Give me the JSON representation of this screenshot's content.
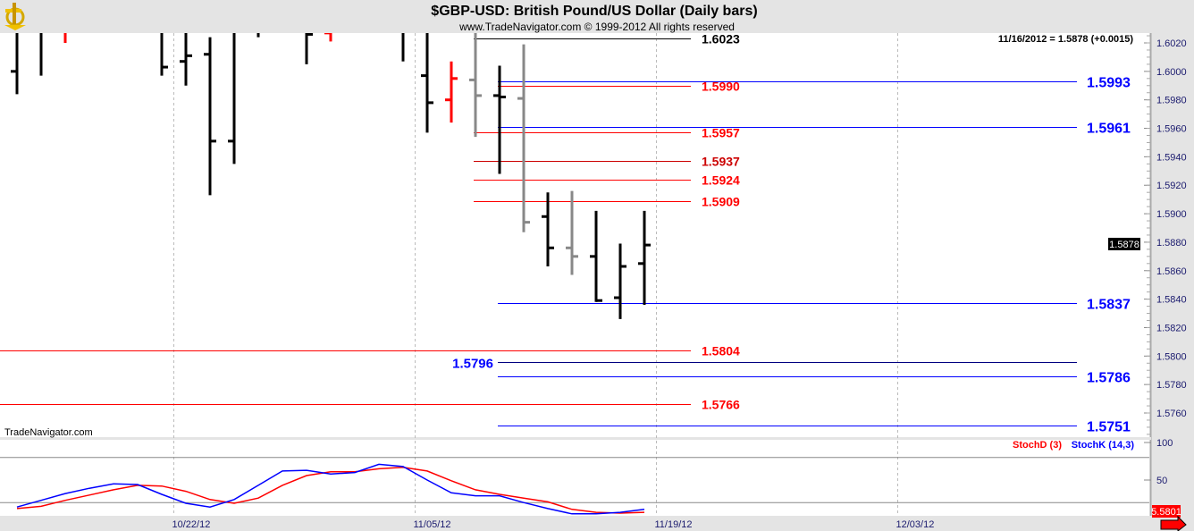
{
  "header": {
    "title": "$GBP-USD:  British Pound/US Dollar  (Daily bars)",
    "subtitle": "www.TradeNavigator.com © 1999-2012 All rights reserved",
    "logo": "trade-navigator-sextant-logo"
  },
  "readout": "11/16/2012 = 1.5878 (+0.0015)",
  "watermark": "TradeNavigator.com",
  "colors": {
    "up_bar": "#000000",
    "red_bar": "#ff0000",
    "gray_bar": "#888888",
    "red_level": "#ff0000",
    "blue_level": "#0000ff",
    "axis_text": "#1a1a6e",
    "stoch_k": "#0000ff",
    "stoch_d": "#ff0000",
    "panel": "#e4e4e4"
  },
  "chart_data": [
    {
      "type": "ohlc",
      "title": "$GBP-USD:  British Pound/US Dollar  (Daily bars)",
      "ylim": [
        1.574,
        1.6027
      ],
      "y_ticks": [
        "1.6020",
        "1.6000",
        "1.5980",
        "1.5960",
        "1.5940",
        "1.5920",
        "1.5900",
        "1.5880",
        "1.5860",
        "1.5840",
        "1.5820",
        "1.5800",
        "1.5780",
        "1.5760"
      ],
      "x_ticks": [
        "10/22/12",
        "11/05/12",
        "11/19/12",
        "12/03/12"
      ],
      "last_price_label": "1.5878",
      "bars": [
        {
          "date": "10/11/12",
          "o": 1.6,
          "h": 1.604,
          "l": 1.5984,
          "c": 1.6035,
          "color": "black"
        },
        {
          "date": "10/12/12",
          "o": 1.6035,
          "h": 1.6045,
          "l": 1.5997,
          "c": 1.603,
          "color": "black"
        },
        {
          "date": "10/15/12",
          "o": 1.6035,
          "h": 1.604,
          "l": 1.602,
          "c": 1.603,
          "color": "red"
        },
        {
          "date": "10/16/12",
          "o": null,
          "h": null,
          "l": null,
          "c": null,
          "color": "black"
        },
        {
          "date": "10/17/12",
          "o": null,
          "h": null,
          "l": null,
          "c": null,
          "color": "black"
        },
        {
          "date": "10/18/12",
          "o": null,
          "h": null,
          "l": null,
          "c": null,
          "color": "black"
        },
        {
          "date": "10/19/12",
          "o": 1.6035,
          "h": 1.6045,
          "l": 1.5997,
          "c": 1.6003,
          "color": "black"
        },
        {
          "date": "10/22/12",
          "o": 1.6007,
          "h": 1.6035,
          "l": 1.599,
          "c": 1.6011,
          "color": "black"
        },
        {
          "date": "10/23/12",
          "o": 1.6012,
          "h": 1.6024,
          "l": 1.5913,
          "c": 1.5951,
          "color": "black"
        },
        {
          "date": "10/24/12",
          "o": 1.5951,
          "h": 1.6035,
          "l": 1.5935,
          "c": 1.603,
          "color": "black"
        },
        {
          "date": "10/25/12",
          "o": 1.6035,
          "h": 1.604,
          "l": 1.6024,
          "c": 1.603,
          "color": "black"
        },
        {
          "date": "10/26/12",
          "o": null,
          "h": null,
          "l": null,
          "c": null,
          "color": "black"
        },
        {
          "date": "10/29/12",
          "o": 1.6035,
          "h": 1.604,
          "l": 1.6005,
          "c": 1.6026,
          "color": "black"
        },
        {
          "date": "10/30/12",
          "o": 1.6027,
          "h": 1.6035,
          "l": 1.6021,
          "c": 1.603,
          "color": "red"
        },
        {
          "date": "10/31/12",
          "o": null,
          "h": null,
          "l": null,
          "c": null,
          "color": "black"
        },
        {
          "date": "11/01/12",
          "o": null,
          "h": null,
          "l": null,
          "c": null,
          "color": "black"
        },
        {
          "date": "11/02/12",
          "o": 1.6035,
          "h": 1.604,
          "l": 1.6007,
          "c": 1.603,
          "color": "black"
        },
        {
          "date": "11/05/12",
          "o": 1.5997,
          "h": 1.604,
          "l": 1.5957,
          "c": 1.5978,
          "color": "black"
        },
        {
          "date": "11/06/12",
          "o": 1.598,
          "h": 1.6007,
          "l": 1.5964,
          "c": 1.5995,
          "color": "red"
        },
        {
          "date": "11/07/12",
          "o": 1.5994,
          "h": 1.603,
          "l": 1.5954,
          "c": 1.5983,
          "color": "gray"
        },
        {
          "date": "11/08/12",
          "o": 1.5983,
          "h": 1.6004,
          "l": 1.5928,
          "c": 1.5982,
          "color": "black"
        },
        {
          "date": "11/09/12",
          "o": 1.5981,
          "h": 1.6019,
          "l": 1.5887,
          "c": 1.5894,
          "color": "gray"
        },
        {
          "date": "11/12/12",
          "o": 1.5898,
          "h": 1.5915,
          "l": 1.5863,
          "c": 1.5876,
          "color": "black"
        },
        {
          "date": "11/13/12",
          "o": 1.5876,
          "h": 1.5916,
          "l": 1.5857,
          "c": 1.587,
          "color": "gray"
        },
        {
          "date": "11/14/12",
          "o": 1.587,
          "h": 1.5902,
          "l": 1.5838,
          "c": 1.5839,
          "color": "black"
        },
        {
          "date": "11/15/12",
          "o": 1.5841,
          "h": 1.5879,
          "l": 1.5826,
          "c": 1.5863,
          "color": "black"
        },
        {
          "date": "11/16/12",
          "o": 1.5865,
          "h": 1.5902,
          "l": 1.5836,
          "c": 1.5878,
          "color": "black"
        }
      ],
      "levels": [
        {
          "value": 1.6023,
          "label": "1.6023",
          "color": "#000000",
          "from": "11/07/12",
          "to": "11/20/12",
          "label_side": "right"
        },
        {
          "value": 1.599,
          "label": "1.5990",
          "color": "#ff0000",
          "from": "11/08/12",
          "to": "11/20/12",
          "label_side": "right"
        },
        {
          "value": 1.5957,
          "label": "1.5957",
          "color": "#ff0000",
          "from": "11/07/12",
          "to": "11/20/12",
          "label_side": "right"
        },
        {
          "value": 1.5937,
          "label": "1.5937",
          "color": "#cc0000",
          "from": "11/07/12",
          "to": "11/20/12",
          "label_side": "right"
        },
        {
          "value": 1.5924,
          "label": "1.5924",
          "color": "#ff0000",
          "from": "11/07/12",
          "to": "11/20/12",
          "label_side": "right"
        },
        {
          "value": 1.5909,
          "label": "1.5909",
          "color": "#ff0000",
          "from": "11/07/12",
          "to": "11/20/12",
          "label_side": "right"
        },
        {
          "value": 1.5804,
          "label": "1.5804",
          "color": "#ff0000",
          "from": null,
          "to": "11/20/12",
          "label_side": "right"
        },
        {
          "value": 1.5766,
          "label": "1.5766",
          "color": "#ff0000",
          "from": null,
          "to": "11/20/12",
          "label_side": "right"
        },
        {
          "value": 1.5993,
          "label": "1.5993",
          "color": "#0000ff",
          "from": "11/08/12",
          "to": "12/12/12",
          "label_side": "right"
        },
        {
          "value": 1.5961,
          "label": "1.5961",
          "color": "#0000ff",
          "from": "11/08/12",
          "to": "12/12/12",
          "label_side": "right"
        },
        {
          "value": 1.5837,
          "label": "1.5837",
          "color": "#0000ff",
          "from": "11/08/12",
          "to": "12/12/12",
          "label_side": "right"
        },
        {
          "value": 1.5796,
          "label": "1.5796",
          "color": "#000080",
          "from": "11/08/12",
          "to": "12/12/12",
          "label_side": "left"
        },
        {
          "value": 1.5786,
          "label": "1.5786",
          "color": "#0000ff",
          "from": "11/08/12",
          "to": "12/12/12",
          "label_side": "right"
        },
        {
          "value": 1.5751,
          "label": "1.5751",
          "color": "#0000ff",
          "from": "11/08/12",
          "to": "12/12/12",
          "label_side": "right"
        }
      ]
    },
    {
      "type": "line",
      "ylim": [
        0,
        100
      ],
      "y_ticks": [
        "100",
        "50"
      ],
      "reference_lines": [
        80,
        20
      ],
      "last_value_label": "5.5801",
      "series": [
        {
          "name": "StochD (3)",
          "color": "#ff0000",
          "values": [
            12,
            15,
            23,
            30,
            37,
            43,
            42,
            35,
            24,
            19,
            26,
            43,
            56,
            61,
            61,
            65,
            67,
            62,
            49,
            37,
            31,
            26,
            21,
            11,
            7,
            6,
            7
          ]
        },
        {
          "name": "StochK (14,3)",
          "color": "#0000ff",
          "values": [
            14,
            23,
            32,
            39,
            45,
            44,
            31,
            19,
            14,
            24,
            43,
            62,
            63,
            58,
            60,
            71,
            68,
            50,
            33,
            29,
            29,
            20,
            12,
            5,
            5,
            7,
            11
          ]
        }
      ]
    }
  ]
}
